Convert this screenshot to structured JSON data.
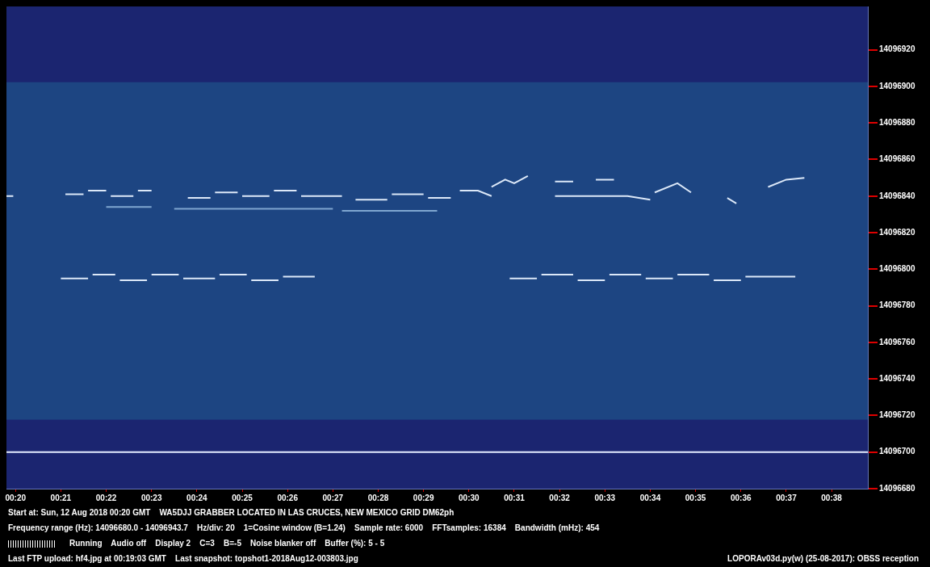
{
  "chart_data": {
    "type": "line",
    "xlim": [
      19.8,
      38.8
    ],
    "xticks": [
      {
        "value": 20,
        "label": "00:20"
      },
      {
        "value": 21,
        "label": "00:21"
      },
      {
        "value": 22,
        "label": "00:22"
      },
      {
        "value": 23,
        "label": "00:23"
      },
      {
        "value": 24,
        "label": "00:24"
      },
      {
        "value": 25,
        "label": "00:25"
      },
      {
        "value": 26,
        "label": "00:26"
      },
      {
        "value": 27,
        "label": "00:27"
      },
      {
        "value": 28,
        "label": "00:28"
      },
      {
        "value": 29,
        "label": "00:29"
      },
      {
        "value": 30,
        "label": "00:30"
      },
      {
        "value": 31,
        "label": "00:31"
      },
      {
        "value": 32,
        "label": "00:32"
      },
      {
        "value": 33,
        "label": "00:33"
      },
      {
        "value": 34,
        "label": "00:34"
      },
      {
        "value": 35,
        "label": "00:35"
      },
      {
        "value": 36,
        "label": "00:36"
      },
      {
        "value": 37,
        "label": "00:37"
      },
      {
        "value": 38,
        "label": "00:38"
      }
    ],
    "ylim": [
      14096680,
      14096943.7
    ],
    "yticks": [
      14096680,
      14096700,
      14096720,
      14096740,
      14096760,
      14096780,
      14096800,
      14096820,
      14096840,
      14096860,
      14096880,
      14096900,
      14096920
    ],
    "grid": false,
    "series": [
      {
        "color": "#7fa6d0",
        "x": [
          22.0,
          23.0,
          null,
          23.5,
          27.0,
          null,
          27.2,
          29.3
        ],
        "values": [
          14096834,
          14096834,
          null,
          14096833,
          14096833,
          null,
          14096832,
          14096832
        ]
      },
      {
        "color": "#dce8f8",
        "x": [
          19.8,
          19.95,
          null,
          21.1,
          21.5,
          null,
          21.6,
          22.0,
          null,
          22.1,
          22.6,
          null,
          22.7,
          23.0,
          null,
          23.8,
          24.3,
          null,
          24.4,
          24.9,
          null,
          25.0,
          25.6,
          null,
          25.7,
          26.2,
          null,
          26.3,
          27.2,
          null,
          27.5,
          28.2,
          null,
          28.3,
          29.0,
          null,
          29.1,
          29.6,
          null,
          29.8,
          30.2,
          30.5,
          null,
          30.5,
          30.8,
          31.0,
          31.3,
          null,
          31.9,
          32.3,
          null,
          32.8,
          33.2,
          null,
          31.9,
          33.5,
          34.0,
          null,
          34.1,
          34.6,
          34.9,
          null,
          35.7,
          35.9,
          null,
          36.6,
          37.0,
          37.4
        ],
        "values": [
          14096840,
          14096840,
          null,
          14096841,
          14096841,
          null,
          14096843,
          14096843,
          null,
          14096840,
          14096840,
          null,
          14096843,
          14096843,
          null,
          14096839,
          14096839,
          null,
          14096842,
          14096842,
          null,
          14096840,
          14096840,
          null,
          14096843,
          14096843,
          null,
          14096840,
          14096840,
          null,
          14096838,
          14096838,
          null,
          14096841,
          14096841,
          null,
          14096839,
          14096839,
          null,
          14096843,
          14096843,
          14096840,
          null,
          14096845,
          14096849,
          14096847,
          14096851,
          null,
          14096848,
          14096848,
          null,
          14096849,
          14096849,
          null,
          14096840,
          14096840,
          14096838,
          null,
          14096842,
          14096847,
          14096842,
          null,
          14096839,
          14096836,
          null,
          14096845,
          14096849,
          14096850
        ]
      },
      {
        "color": "#dce8f8",
        "x": [
          21.0,
          21.6,
          null,
          21.7,
          22.2,
          null,
          22.3,
          22.9,
          null,
          23.0,
          23.6,
          null,
          23.7,
          24.4,
          null,
          24.5,
          25.1,
          null,
          25.2,
          25.8,
          null,
          25.9,
          26.6,
          null,
          30.9,
          31.5,
          null,
          31.6,
          32.3,
          null,
          32.4,
          33.0,
          null,
          33.1,
          33.8,
          null,
          33.9,
          34.5,
          null,
          34.6,
          35.3,
          null,
          35.4,
          36.0,
          null,
          36.1,
          37.2
        ],
        "values": [
          14096795,
          14096795,
          null,
          14096797,
          14096797,
          null,
          14096794,
          14096794,
          null,
          14096797,
          14096797,
          null,
          14096795,
          14096795,
          null,
          14096797,
          14096797,
          null,
          14096794,
          14096794,
          null,
          14096796,
          14096796,
          null,
          14096795,
          14096795,
          null,
          14096797,
          14096797,
          null,
          14096794,
          14096794,
          null,
          14096797,
          14096797,
          null,
          14096795,
          14096795,
          null,
          14096797,
          14096797,
          null,
          14096794,
          14096794,
          null,
          14096796,
          14096796
        ]
      },
      {
        "color": "#e4ecff",
        "x": [
          19.8,
          38.8
        ],
        "values": [
          14096700,
          14096700
        ]
      }
    ],
    "annotations": [
      [
        "Start at: Sun, 12 Aug 2018 00:20 GMT    WA5DJJ GRABBER LOCATED IN LAS CRUCES, NEW MEXICO GRID DM62ph"
      ],
      [
        "Frequency range (Hz): 14096680.0 - 14096943.7    Hz/div: 20    1=Cosine window (B=1.24)    Sample rate: 6000    FFTsamples: 16384    Bandwidth (mHz): 454"
      ],
      [
        "Running    Audio off    Display 2    C=3    B=-5    Noise blanker off    Buffer (%): 5 - 5"
      ],
      [
        "Last FTP upload: hf4.jpg at 00:19:03 GMT    Last snapshot: topshot1-2018Aug12-003803.jpg",
        "LOPORAv03d.py(w) (25-08-2017): OBSS reception"
      ]
    ]
  }
}
